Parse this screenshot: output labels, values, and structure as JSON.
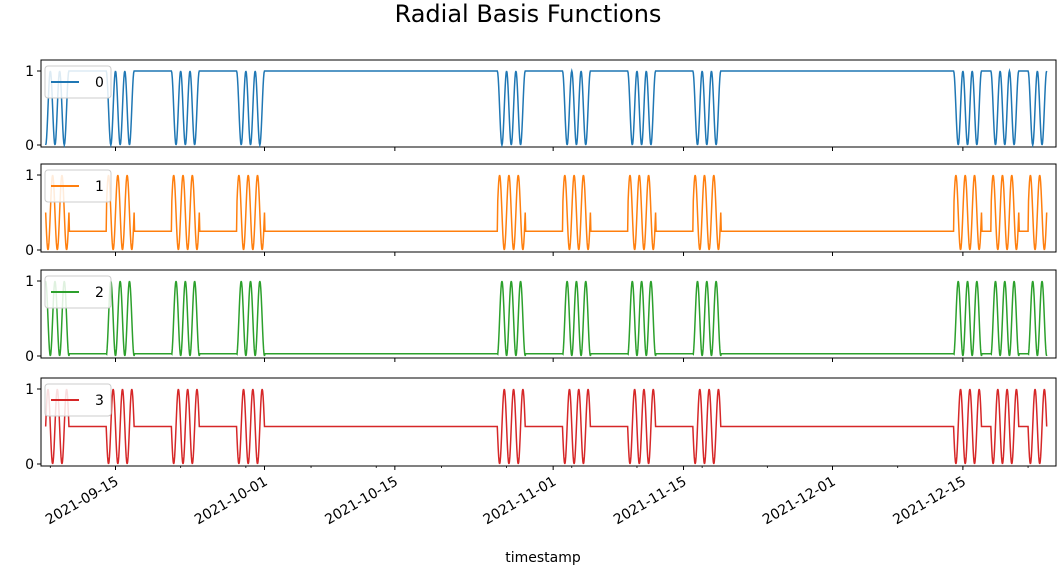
{
  "chart_data": {
    "type": "line",
    "title": "Radial Basis Functions",
    "xlabel": "timestamp",
    "ylabel": "",
    "x_range": [
      "2021-09-07",
      "2021-12-25"
    ],
    "x_ticks": [
      "2021-09-15",
      "2021-10-01",
      "2021-10-15",
      "2021-11-01",
      "2021-11-15",
      "2021-12-01",
      "2021-12-15"
    ],
    "y_ticks": [
      0,
      1
    ],
    "ylim": [
      0,
      1
    ],
    "grid": false,
    "legend_position": "upper left",
    "layout": "4 stacked subplots sharing x axis",
    "active_date_ranges": [
      [
        "2021-09-07",
        "2021-09-10"
      ],
      [
        "2021-09-14",
        "2021-09-17"
      ],
      [
        "2021-09-21",
        "2021-09-24"
      ],
      [
        "2021-09-28",
        "2021-10-01"
      ],
      [
        "2021-10-26",
        "2021-10-29"
      ],
      [
        "2021-11-02",
        "2021-11-05"
      ],
      [
        "2021-11-09",
        "2021-11-12"
      ],
      [
        "2021-11-16",
        "2021-11-19"
      ],
      [
        "2021-12-14",
        "2021-12-17"
      ],
      [
        "2021-12-18",
        "2021-12-21"
      ],
      [
        "2021-12-22",
        "2021-12-24"
      ]
    ],
    "series": [
      {
        "name": "0",
        "color": "#1f77b4",
        "flat_value": 1.0,
        "phase": 0.0
      },
      {
        "name": "1",
        "color": "#ff7f0e",
        "flat_value": 0.25,
        "phase": 0.25
      },
      {
        "name": "2",
        "color": "#2ca02c",
        "flat_value": 0.03,
        "phase": 0.5
      },
      {
        "name": "3",
        "color": "#d62728",
        "flat_value": 0.5,
        "phase": 0.75
      }
    ]
  }
}
